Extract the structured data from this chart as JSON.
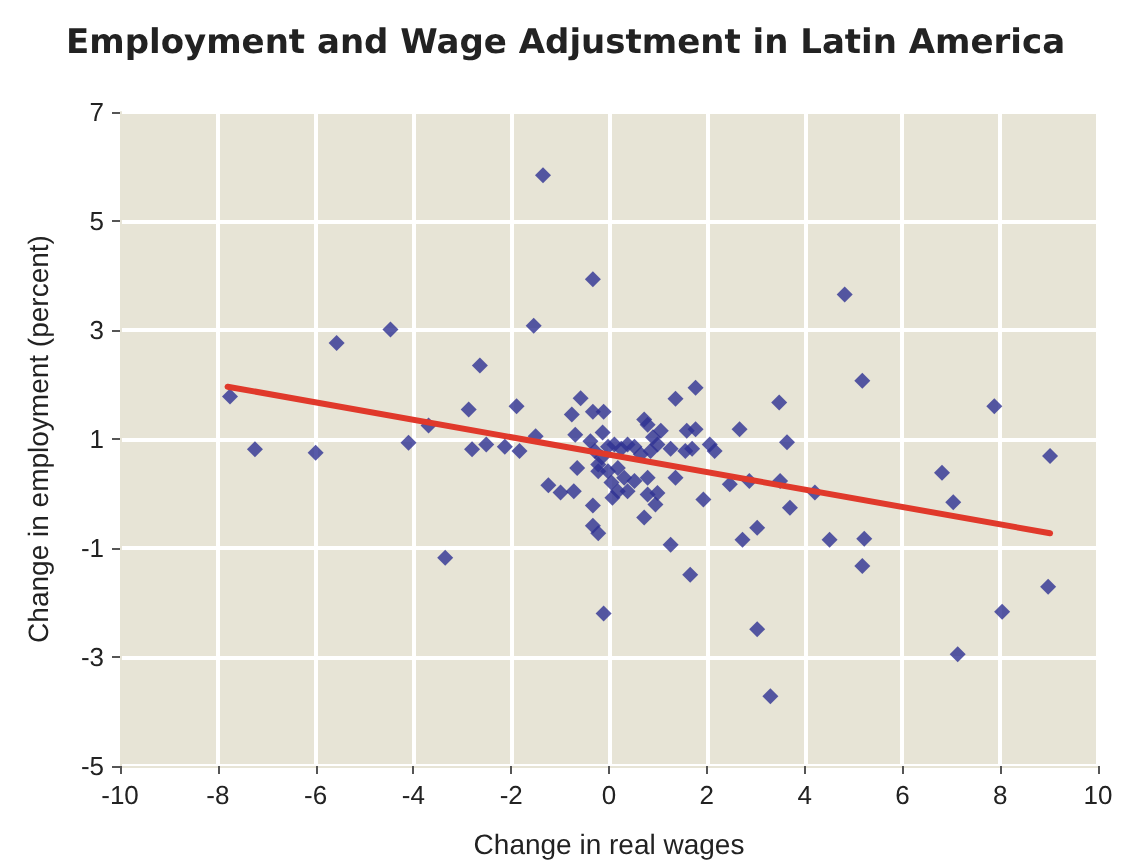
{
  "chart_data": {
    "type": "scatter",
    "title": "Employment and Wage Adjustment in Latin America",
    "xlabel": "Change in real wages",
    "ylabel": "Change in employment (percent)",
    "xlim": [
      -10,
      10
    ],
    "xticks": [
      -10,
      -8,
      -6,
      -4,
      -2,
      0,
      2,
      4,
      6,
      8,
      10
    ],
    "ylim": [
      -5,
      7
    ],
    "yticks": [
      -5,
      -3,
      -1,
      1,
      3,
      5,
      7
    ],
    "grid": true,
    "marker": "diamond",
    "series": [
      {
        "color": "#2e3192",
        "x": [
          -7.75,
          -7.24,
          -6.0,
          -5.57,
          -4.47,
          -4.1,
          -3.69,
          -3.35,
          -2.87,
          -2.8,
          -2.64,
          -2.51,
          -2.13,
          -1.89,
          -1.83,
          -1.5,
          -1.35,
          -1.54,
          -1.24,
          -0.99,
          -0.72,
          -0.33,
          -0.58,
          -0.76,
          -0.33,
          -0.11,
          -0.69,
          -0.65,
          -0.33,
          -0.33,
          -0.22,
          -0.11,
          -0.13,
          -0.38,
          -0.29,
          -0.15,
          -0.02,
          0.11,
          0.25,
          0.38,
          0.52,
          0.72,
          0.79,
          1.06,
          0.9,
          0.99,
          1.26,
          0.85,
          0.65,
          -0.22,
          -0.02,
          0.18,
          0.31,
          0.52,
          0.05,
          0.18,
          0.07,
          0.38,
          0.79,
          0.79,
          0.99,
          0.95,
          0.72,
          -0.22,
          1.36,
          1.77,
          1.59,
          1.77,
          1.56,
          1.7,
          2.06,
          2.16,
          1.36,
          1.93,
          1.26,
          1.66,
          2.67,
          2.47,
          2.87,
          2.73,
          3.03,
          3.48,
          3.64,
          3.5,
          3.7,
          4.82,
          5.18,
          4.21,
          4.51,
          5.22,
          5.18,
          3.03,
          3.3,
          6.81,
          7.04,
          7.88,
          9.02,
          8.04,
          8.98,
          7.13
        ],
        "values": [
          1.78,
          0.81,
          0.75,
          2.76,
          3.01,
          0.93,
          1.25,
          -1.18,
          1.54,
          0.81,
          2.35,
          0.9,
          0.86,
          1.6,
          0.78,
          1.05,
          5.84,
          3.08,
          0.15,
          0.02,
          0.04,
          3.93,
          1.75,
          1.45,
          1.5,
          1.5,
          1.08,
          0.47,
          -0.22,
          -0.59,
          -0.73,
          -2.2,
          1.12,
          0.96,
          0.78,
          0.66,
          0.86,
          0.9,
          0.82,
          0.9,
          0.86,
          1.36,
          1.26,
          1.15,
          1.03,
          0.9,
          0.82,
          0.78,
          0.72,
          0.53,
          0.41,
          0.47,
          0.29,
          0.23,
          0.2,
          0.04,
          -0.08,
          0.04,
          0.29,
          -0.02,
          0.01,
          -0.2,
          -0.44,
          0.41,
          1.74,
          1.94,
          1.15,
          1.18,
          0.78,
          0.82,
          0.9,
          0.78,
          0.29,
          -0.11,
          -0.94,
          -1.49,
          1.18,
          0.17,
          0.23,
          -0.85,
          -0.63,
          1.67,
          0.94,
          0.23,
          -0.26,
          3.65,
          2.07,
          0.02,
          -0.85,
          -0.83,
          -1.33,
          -2.49,
          -3.72,
          0.38,
          -0.16,
          1.6,
          0.69,
          -2.17,
          -1.71,
          -2.95
        ]
      },
      {
        "type": "line",
        "color": "#e0392b",
        "marker": "none",
        "x": [
          -7.8,
          9.02
        ],
        "values": [
          1.96,
          -0.73
        ]
      }
    ]
  }
}
